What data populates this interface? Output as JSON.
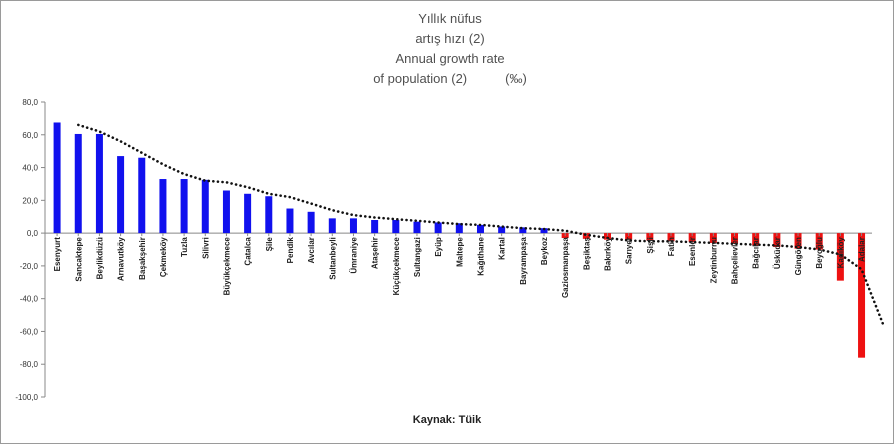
{
  "chart_data": {
    "type": "bar",
    "title_lines": [
      "Yıllık nüfus",
      "artış hızı (2)",
      "Annual growth rate"
    ],
    "title_last": "of population (2)",
    "unit": "(‰)",
    "ylim": [
      -100,
      80
    ],
    "ytick_labels": [
      "80,0",
      "60,0",
      "40,0",
      "20,0",
      "0,0",
      "-20,0",
      "-40,0",
      "-60,0",
      "-80,0",
      "-100,0"
    ],
    "grid": false,
    "trendline": "dotted",
    "positive_color": "#1111ee",
    "negative_color": "#ee1111",
    "trend_color": "#111111",
    "categories": [
      "Esenyurt",
      "Sancaktepe",
      "Beylikdüzü",
      "Arnavutköy",
      "Başakşehir",
      "Çekmeköy",
      "Tuzla",
      "Silivri",
      "Büyükçekmece",
      "Çatalca",
      "Şile",
      "Pendik",
      "Avcılar",
      "Sultanbeyli",
      "Ümraniye",
      "Ataşehir",
      "Küçükçekmece",
      "Sultangazi",
      "Eyüp",
      "Maltepe",
      "Kağıthane",
      "Kartal",
      "Bayrampaşa",
      "Beykoz",
      "Gaziosmanpaşa",
      "Beşiktaş",
      "Bakırköy",
      "Sarıyer",
      "Şişli",
      "Fatih",
      "Esenler",
      "Zeytinburnu",
      "Bahçelievler",
      "Bağcılar",
      "Üsküdar",
      "Güngören",
      "Beyoğlu",
      "Kadıköy",
      "Adalar"
    ],
    "values": [
      67.5,
      60.5,
      60.5,
      47,
      46,
      33,
      33,
      32.5,
      26,
      24,
      22.5,
      15,
      13,
      9,
      9,
      8,
      8,
      7,
      6.5,
      6,
      5,
      4,
      3.5,
      3,
      -3,
      -3.5,
      -4,
      -4,
      -4.5,
      -5,
      -5.5,
      -6,
      -6.5,
      -7.5,
      -8.5,
      -9.5,
      -10,
      -29,
      -76
    ],
    "trend_values": [
      66,
      62,
      56,
      49,
      42,
      36,
      32,
      31,
      28,
      24,
      22,
      18,
      14,
      11,
      9.5,
      8.5,
      7.5,
      6.5,
      5.5,
      5,
      4,
      3,
      2.5,
      1.5,
      -1,
      -3,
      -4.5,
      -5,
      -5,
      -5.5,
      -6,
      -6.5,
      -7,
      -7.5,
      -8.5,
      -10,
      -13,
      -22,
      -55
    ],
    "source": "Kaynak: Tüik"
  }
}
